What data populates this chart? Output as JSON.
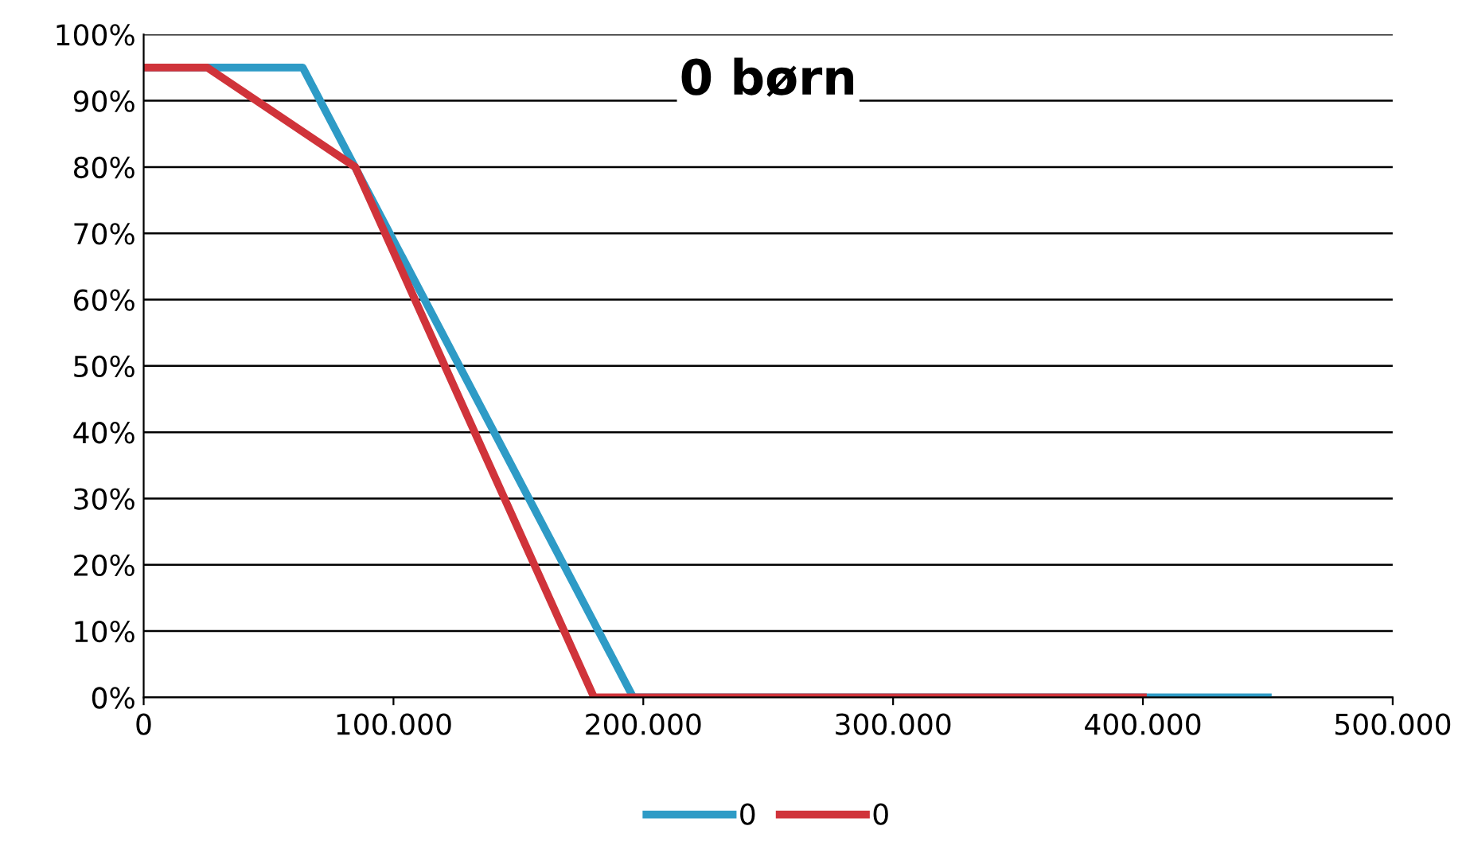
{
  "chart_data": {
    "type": "line",
    "title": "0 børn",
    "series": [
      {
        "name": "0",
        "color": "#2e9bc6",
        "x": [
          0,
          63700,
          196000,
          450000
        ],
        "values": [
          95,
          95,
          0,
          0
        ]
      },
      {
        "name": "0",
        "color": "#d0333a",
        "x": [
          0,
          25500,
          84700,
          180300,
          400000
        ],
        "values": [
          95,
          95,
          80,
          0,
          0
        ]
      }
    ],
    "xlim": [
      0,
      500000
    ],
    "xticks": [
      0,
      {
        "value": 100000,
        "label": "100.000"
      },
      {
        "value": 200000,
        "label": "200.000"
      },
      {
        "value": 300000,
        "label": "300.000"
      },
      {
        "value": 400000,
        "label": "400.000"
      },
      {
        "value": 500000,
        "label": "500.000"
      }
    ],
    "ylim": [
      0,
      100
    ],
    "yticks": [
      {
        "value": 0,
        "label": "0%"
      },
      {
        "value": 10,
        "label": "10%"
      },
      {
        "value": 20,
        "label": "20%"
      },
      {
        "value": 30,
        "label": "30%"
      },
      {
        "value": 40,
        "label": "40%"
      },
      {
        "value": 50,
        "label": "50%"
      },
      {
        "value": 60,
        "label": "60%"
      },
      {
        "value": 70,
        "label": "70%"
      },
      {
        "value": 80,
        "label": "80%"
      },
      {
        "value": 90,
        "label": "90%"
      },
      {
        "value": 100,
        "label": "100%"
      }
    ],
    "grid": "y",
    "legend": "bottom",
    "marker": "none",
    "line_style": "solid"
  }
}
